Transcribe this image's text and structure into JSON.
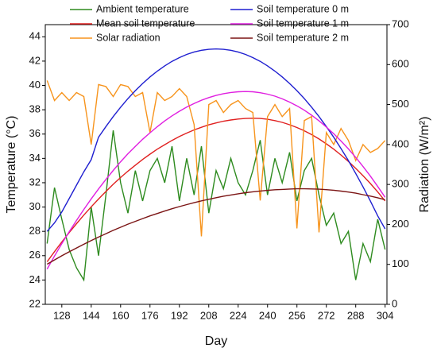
{
  "chart_data": {
    "type": "line",
    "xlabel": "Day",
    "ylabel": "Temperature (°C)",
    "y2label": "Radiation (W/m²)",
    "x": [
      120,
      124,
      128,
      132,
      136,
      140,
      144,
      148,
      152,
      156,
      160,
      164,
      168,
      172,
      176,
      180,
      184,
      188,
      192,
      196,
      200,
      204,
      208,
      212,
      216,
      220,
      224,
      228,
      232,
      236,
      240,
      244,
      248,
      252,
      256,
      260,
      264,
      268,
      272,
      276,
      280,
      284,
      288,
      292,
      296,
      300,
      304
    ],
    "series": [
      {
        "name": "Ambient temperature",
        "color": "#2e8b1f",
        "values": [
          27,
          31.6,
          29,
          26.5,
          25,
          24,
          30,
          26,
          31,
          36.3,
          32,
          29.5,
          33,
          30.5,
          33,
          34,
          32,
          35,
          30.5,
          34,
          31,
          35,
          29.5,
          33,
          31.5,
          34,
          32,
          31,
          33,
          35.5,
          31,
          34,
          32,
          34.5,
          30.5,
          33,
          34,
          31,
          28.5,
          29.5,
          27,
          28,
          24,
          27,
          25.5,
          29,
          26.5
        ]
      },
      {
        "name": "Mean soil temperature",
        "color": "#e02020",
        "values": [
          25.5,
          26.33,
          27.13,
          27.9,
          28.63,
          29.34,
          30.02,
          30.66,
          31.28,
          31.87,
          32.43,
          32.95,
          33.44,
          33.91,
          34.35,
          34.76,
          35.13,
          35.48,
          35.8,
          36.08,
          36.34,
          36.56,
          36.76,
          36.92,
          37.06,
          37.16,
          37.24,
          37.28,
          37.3,
          37.28,
          37.22,
          37.11,
          36.96,
          36.77,
          36.54,
          36.27,
          35.96,
          35.6,
          35.2,
          34.76,
          34.28,
          33.75,
          33.18,
          32.58,
          31.93,
          31.24,
          30.5
        ]
      },
      {
        "name": "Solar radiation",
        "color": "#f7941d",
        "axis": "y2",
        "values": [
          560,
          510,
          530,
          510,
          530,
          520,
          400,
          550,
          545,
          520,
          550,
          545,
          520,
          530,
          430,
          530,
          510,
          520,
          540,
          520,
          450,
          170,
          500,
          510,
          480,
          500,
          510,
          490,
          480,
          260,
          470,
          500,
          470,
          490,
          190,
          460,
          470,
          180,
          430,
          400,
          440,
          410,
          360,
          400,
          380,
          390,
          410
        ]
      },
      {
        "name": "Soil temperature 0 m",
        "color": "#1f1fd0",
        "values": [
          28,
          28.7,
          29.6,
          30.7,
          31.8,
          32.9,
          33.9,
          35.74,
          36.62,
          37.44,
          38.21,
          38.92,
          39.57,
          40.16,
          40.7,
          41.18,
          41.61,
          41.98,
          42.29,
          42.55,
          42.75,
          42.89,
          42.97,
          43,
          42.97,
          42.89,
          42.75,
          42.55,
          42.29,
          41.98,
          41.61,
          41.18,
          40.7,
          40.16,
          39.57,
          38.92,
          38.21,
          37.44,
          36.62,
          35.74,
          34.81,
          33.82,
          32.76,
          31.66,
          30.49,
          29.27,
          28.2
        ]
      },
      {
        "name": "Soil temperature 1 m",
        "color": "#e01fe0",
        "values": [
          24.9,
          25.97,
          26.99,
          27.97,
          28.9,
          29.8,
          30.67,
          31.49,
          32.27,
          33.01,
          33.72,
          34.38,
          34.99,
          35.57,
          36.11,
          36.61,
          37.08,
          37.5,
          37.88,
          38.22,
          38.52,
          38.78,
          39,
          39.18,
          39.32,
          39.42,
          39.48,
          39.5,
          39.48,
          39.4,
          39.28,
          39.12,
          38.9,
          38.63,
          38.32,
          37.96,
          37.55,
          37.09,
          36.58,
          36.03,
          35.43,
          34.78,
          34.08,
          33.33,
          32.54,
          31.69,
          30.8
        ]
      },
      {
        "name": "Soil temperature 2 m",
        "color": "#7b1414",
        "values": [
          25.3,
          25.65,
          25.99,
          26.32,
          26.63,
          26.94,
          27.25,
          27.53,
          27.81,
          28.08,
          28.34,
          28.59,
          28.82,
          29.05,
          29.27,
          29.47,
          29.67,
          29.86,
          30.04,
          30.2,
          30.36,
          30.51,
          30.64,
          30.77,
          30.89,
          30.99,
          31.09,
          31.18,
          31.25,
          31.32,
          31.37,
          31.42,
          31.45,
          31.48,
          31.5,
          31.5,
          31.49,
          31.47,
          31.43,
          31.38,
          31.31,
          31.23,
          31.14,
          31.02,
          30.9,
          30.76,
          30.6
        ]
      }
    ],
    "xlim": [
      119,
      305
    ],
    "xticks": [
      128,
      144,
      160,
      176,
      192,
      208,
      224,
      240,
      256,
      272,
      288,
      304
    ],
    "ylim": [
      22,
      45
    ],
    "yticks": [
      22,
      24,
      26,
      28,
      30,
      32,
      34,
      36,
      38,
      40,
      42,
      44
    ],
    "y2lim": [
      0,
      700
    ],
    "y2ticks": [
      0,
      100,
      200,
      300,
      400,
      500,
      600,
      700
    ],
    "legend": "top"
  }
}
